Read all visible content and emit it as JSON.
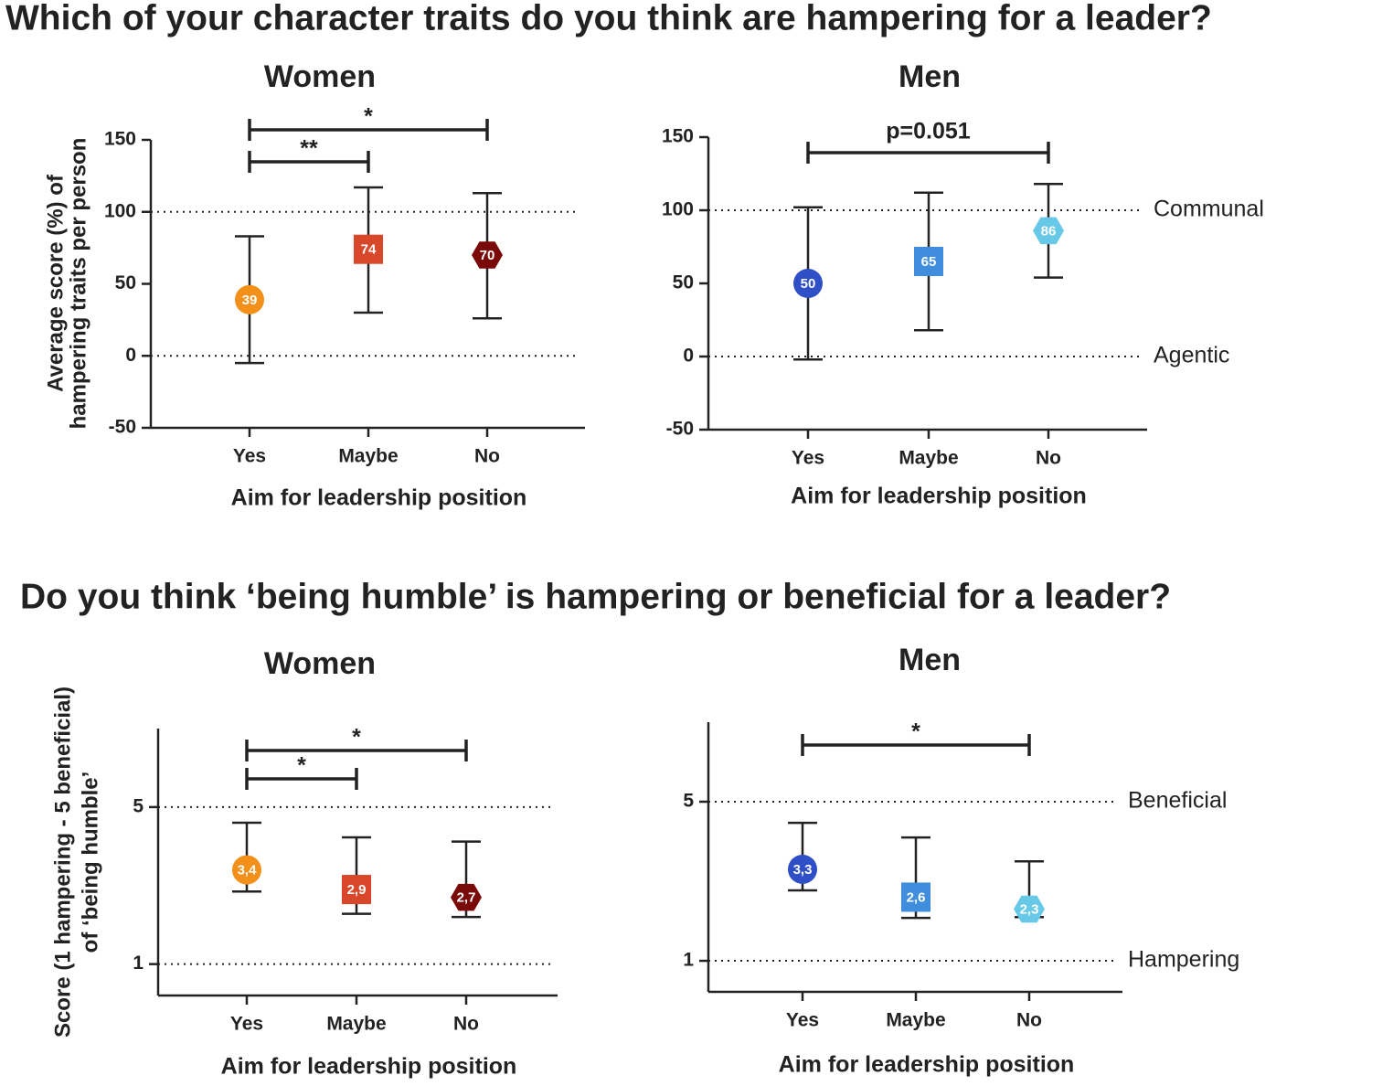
{
  "sections": [
    "Which of your character traits do you think are hampering for a leader?",
    "Do you think ‘being humble’ is hampering or beneficial for a leader?"
  ],
  "chart_data": [
    {
      "type": "errorbar",
      "title": "Women",
      "title_color": "#f5891f",
      "ylabel": [
        "Average score (%) of",
        "hampering traits per person"
      ],
      "xlabel": "Aim for leadership position",
      "categories": [
        "Yes",
        "Maybe",
        "No"
      ],
      "values": [
        39,
        74,
        70
      ],
      "lower": [
        -5,
        30,
        26
      ],
      "upper": [
        83,
        117,
        113
      ],
      "markers": [
        "circle",
        "square",
        "hexagon"
      ],
      "colors": [
        "#f39019",
        "#d9472b",
        "#7a0a0a"
      ],
      "ylim": [
        -50,
        150
      ],
      "yticks": [
        -50,
        0,
        50,
        100,
        150
      ],
      "reference_lines": [
        {
          "value": 100
        },
        {
          "value": 0
        }
      ],
      "brackets": [
        {
          "from": 0,
          "to": 2,
          "label": "*"
        },
        {
          "from": 0,
          "to": 1,
          "label": "**"
        }
      ]
    },
    {
      "type": "errorbar",
      "title": "Men",
      "title_color": "#1f1fd6",
      "xlabel": "Aim for leadership position",
      "categories": [
        "Yes",
        "Maybe",
        "No"
      ],
      "values": [
        50,
        65,
        86
      ],
      "lower": [
        -2,
        18,
        54
      ],
      "upper": [
        102,
        112,
        118
      ],
      "markers": [
        "circle",
        "square",
        "hexagon"
      ],
      "colors": [
        "#2f4fc7",
        "#3f8ede",
        "#67c8e8"
      ],
      "ylim": [
        -50,
        150
      ],
      "yticks": [
        -50,
        0,
        50,
        100,
        150
      ],
      "reference_lines": [
        {
          "value": 100,
          "label": "Communal"
        },
        {
          "value": 0,
          "label": "Agentic"
        }
      ],
      "brackets": [
        {
          "from": 0,
          "to": 2,
          "label": "p=0.051"
        }
      ]
    },
    {
      "type": "errorbar",
      "title": "Women",
      "title_color": "#f5891f",
      "ylabel": [
        "Score (1 hampering - 5 beneficial)",
        "of ‘being humble’"
      ],
      "xlabel": "Aim for leadership position",
      "categories": [
        "Yes",
        "Maybe",
        "No"
      ],
      "values": [
        3.4,
        2.9,
        2.7
      ],
      "value_labels": [
        "3,4",
        "2,9",
        "2,7"
      ],
      "lower": [
        2.85,
        2.28,
        2.2
      ],
      "upper": [
        4.6,
        4.23,
        4.12
      ],
      "markers": [
        "circle",
        "square",
        "hexagon"
      ],
      "colors": [
        "#f39019",
        "#d9472b",
        "#7a0a0a"
      ],
      "ylim": [
        0.2,
        7
      ],
      "yticks": [
        1,
        5
      ],
      "reference_lines": [
        {
          "value": 5
        },
        {
          "value": 1
        }
      ],
      "brackets": [
        {
          "from": 0,
          "to": 2,
          "label": "*"
        },
        {
          "from": 0,
          "to": 1,
          "label": "*"
        }
      ]
    },
    {
      "type": "errorbar",
      "title": "Men",
      "title_color": "#1f1fd6",
      "xlabel": "Aim for leadership position",
      "categories": [
        "Yes",
        "Maybe",
        "No"
      ],
      "values": [
        3.3,
        2.6,
        2.3
      ],
      "value_labels": [
        "3,3",
        "2,6",
        "2,3"
      ],
      "lower": [
        2.77,
        2.08,
        2.1
      ],
      "upper": [
        4.47,
        4.1,
        3.5
      ],
      "markers": [
        "circle",
        "square",
        "hexagon"
      ],
      "colors": [
        "#2f4fc7",
        "#3f8ede",
        "#67c8e8"
      ],
      "ylim": [
        0.22,
        7
      ],
      "yticks": [
        1,
        5
      ],
      "reference_lines": [
        {
          "value": 5,
          "label": "Beneficial"
        },
        {
          "value": 1,
          "label": "Hampering"
        }
      ],
      "brackets": [
        {
          "from": 0,
          "to": 2,
          "label": "*"
        }
      ]
    }
  ]
}
